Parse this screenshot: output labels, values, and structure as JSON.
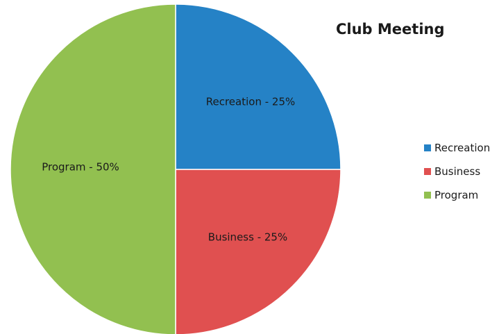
{
  "chart_data": {
    "type": "pie",
    "title": "Club Meeting",
    "categories": [
      "Recreation",
      "Business",
      "Program"
    ],
    "values": [
      25,
      25,
      50
    ],
    "unit": "%",
    "slice_labels": [
      "Recreation - 25%",
      "Business - 25%",
      "Program - 50%"
    ],
    "colors": [
      "#2582c6",
      "#e05050",
      "#92c050"
    ],
    "start_angle": "12 o'clock",
    "direction": "clockwise",
    "legend": {
      "placement": "right",
      "entries": [
        "Recreation",
        "Business",
        "Program"
      ]
    }
  }
}
